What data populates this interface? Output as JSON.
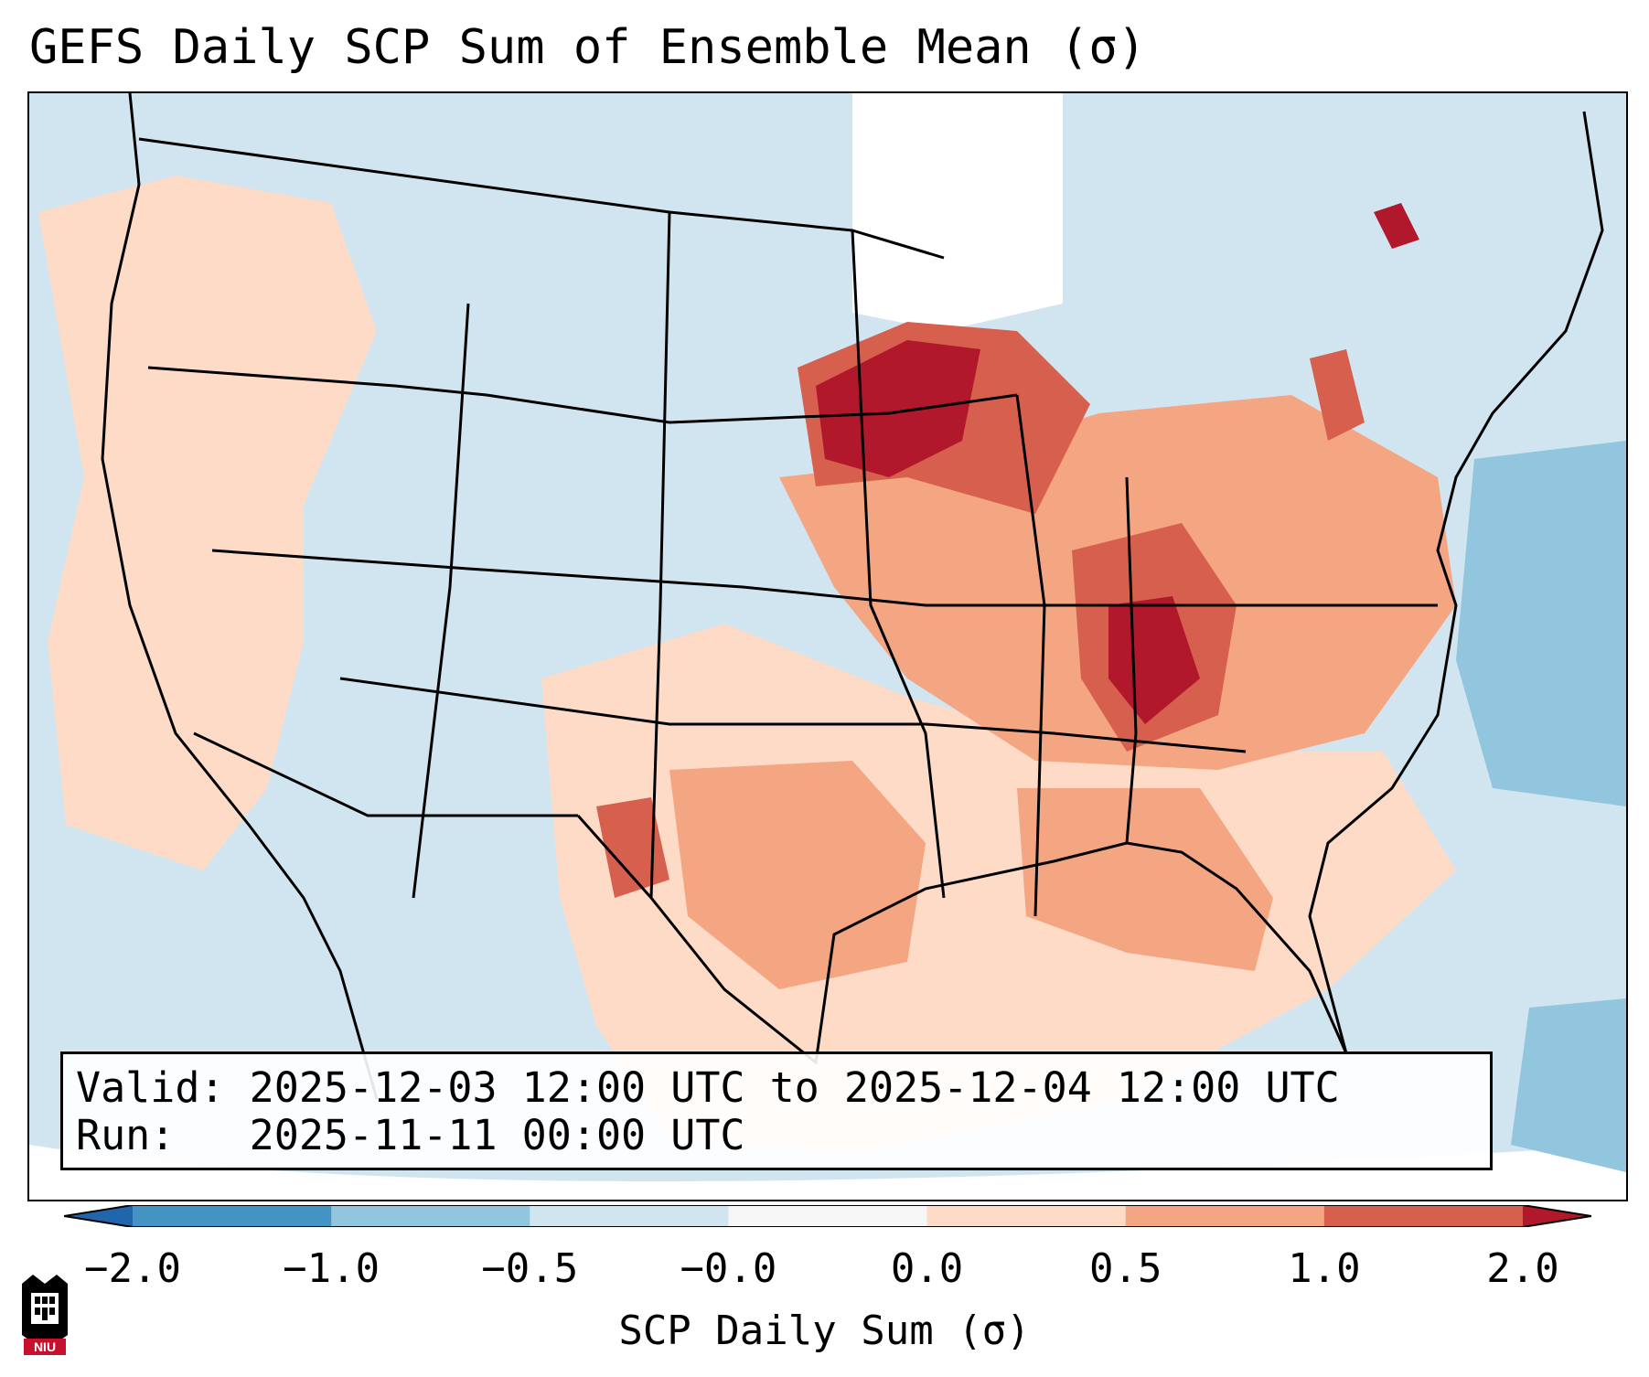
{
  "title": "GEFS Daily SCP Sum of Ensemble Mean (σ)",
  "info": {
    "valid_label": "Valid:",
    "valid_value": "2025-12-03 12:00 UTC to 2025-12-04 12:00 UTC",
    "run_label": "Run:",
    "run_value": "2025-11-11 00:00 UTC"
  },
  "colorbar": {
    "label": "SCP Daily Sum (σ)",
    "ticks": [
      "−2.0",
      "−1.0",
      "−0.5",
      "−0.0",
      "0.0",
      "0.5",
      "1.0",
      "2.0"
    ],
    "colors": [
      "#4393c3",
      "#92c5de",
      "#d1e5f0",
      "#f7f7f7",
      "#fddbc7",
      "#f4a582",
      "#d6604d",
      "#b2182b"
    ],
    "under_color": "#2166ac",
    "over_color": "#b2182b"
  },
  "logo": {
    "icon": "niu-logo-icon",
    "text": "NIU"
  },
  "map": {
    "ocean_color": "#d1e5f0",
    "land_neutral_color": "#d1e5f0",
    "regions": [
      {
        "name": "west-coast",
        "level": 0.2
      },
      {
        "name": "southern-plains-texas",
        "level": 0.3
      },
      {
        "name": "gulf-coast",
        "level": 0.2
      },
      {
        "name": "mississippi-ohio-valley",
        "level": 0.8
      },
      {
        "name": "upper-midwest-minnesota-wisconsin",
        "level": 1.5
      },
      {
        "name": "southeast",
        "level": 0.3
      },
      {
        "name": "atlantic-offshore",
        "level": -0.7
      }
    ]
  }
}
